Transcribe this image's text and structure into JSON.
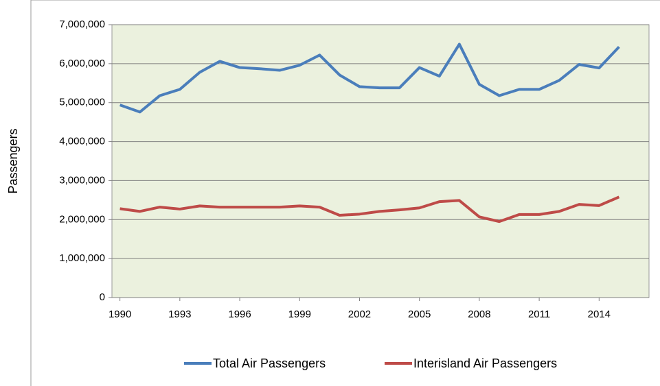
{
  "chart_data": {
    "type": "line",
    "y_label": "Passengers",
    "x": [
      1990,
      1991,
      1992,
      1993,
      1994,
      1995,
      1996,
      1997,
      1998,
      1999,
      2000,
      2001,
      2002,
      2003,
      2004,
      2005,
      2006,
      2007,
      2008,
      2009,
      2010,
      2011,
      2012,
      2013,
      2014,
      2015
    ],
    "series": [
      {
        "name": "Total Air Passengers",
        "color": "#4a7ebb",
        "values": [
          4940000,
          4760000,
          5180000,
          5340000,
          5780000,
          6060000,
          5900000,
          5870000,
          5830000,
          5960000,
          6220000,
          5710000,
          5410000,
          5380000,
          5380000,
          5900000,
          5680000,
          6500000,
          5470000,
          5180000,
          5340000,
          5340000,
          5570000,
          5980000,
          5890000,
          6430000
        ]
      },
      {
        "name": "Interisland Air Passengers",
        "color": "#be4b48",
        "values": [
          2280000,
          2210000,
          2320000,
          2270000,
          2350000,
          2320000,
          2320000,
          2320000,
          2320000,
          2350000,
          2320000,
          2110000,
          2140000,
          2210000,
          2250000,
          2300000,
          2460000,
          2490000,
          2070000,
          1950000,
          2130000,
          2130000,
          2210000,
          2390000,
          2360000,
          2580000
        ]
      }
    ],
    "xlim": [
      1989.6,
      2016.5
    ],
    "xticks": [
      1990,
      1993,
      1996,
      1999,
      2002,
      2005,
      2008,
      2011,
      2014
    ],
    "ylim": [
      0,
      7000000
    ],
    "yticks": [
      0,
      {
        "value": 1000000,
        "label": "1,000,000"
      },
      {
        "value": 2000000,
        "label": "2,000,000"
      },
      {
        "value": 3000000,
        "label": "3,000,000"
      },
      {
        "value": 4000000,
        "label": "4,000,000"
      },
      {
        "value": 5000000,
        "label": "5,000,000"
      },
      {
        "value": 6000000,
        "label": "6,000,000"
      },
      {
        "value": 7000000,
        "label": "7,000,000"
      }
    ],
    "grid": true,
    "legend": "bottom",
    "plot_background": "#ebf1de"
  }
}
